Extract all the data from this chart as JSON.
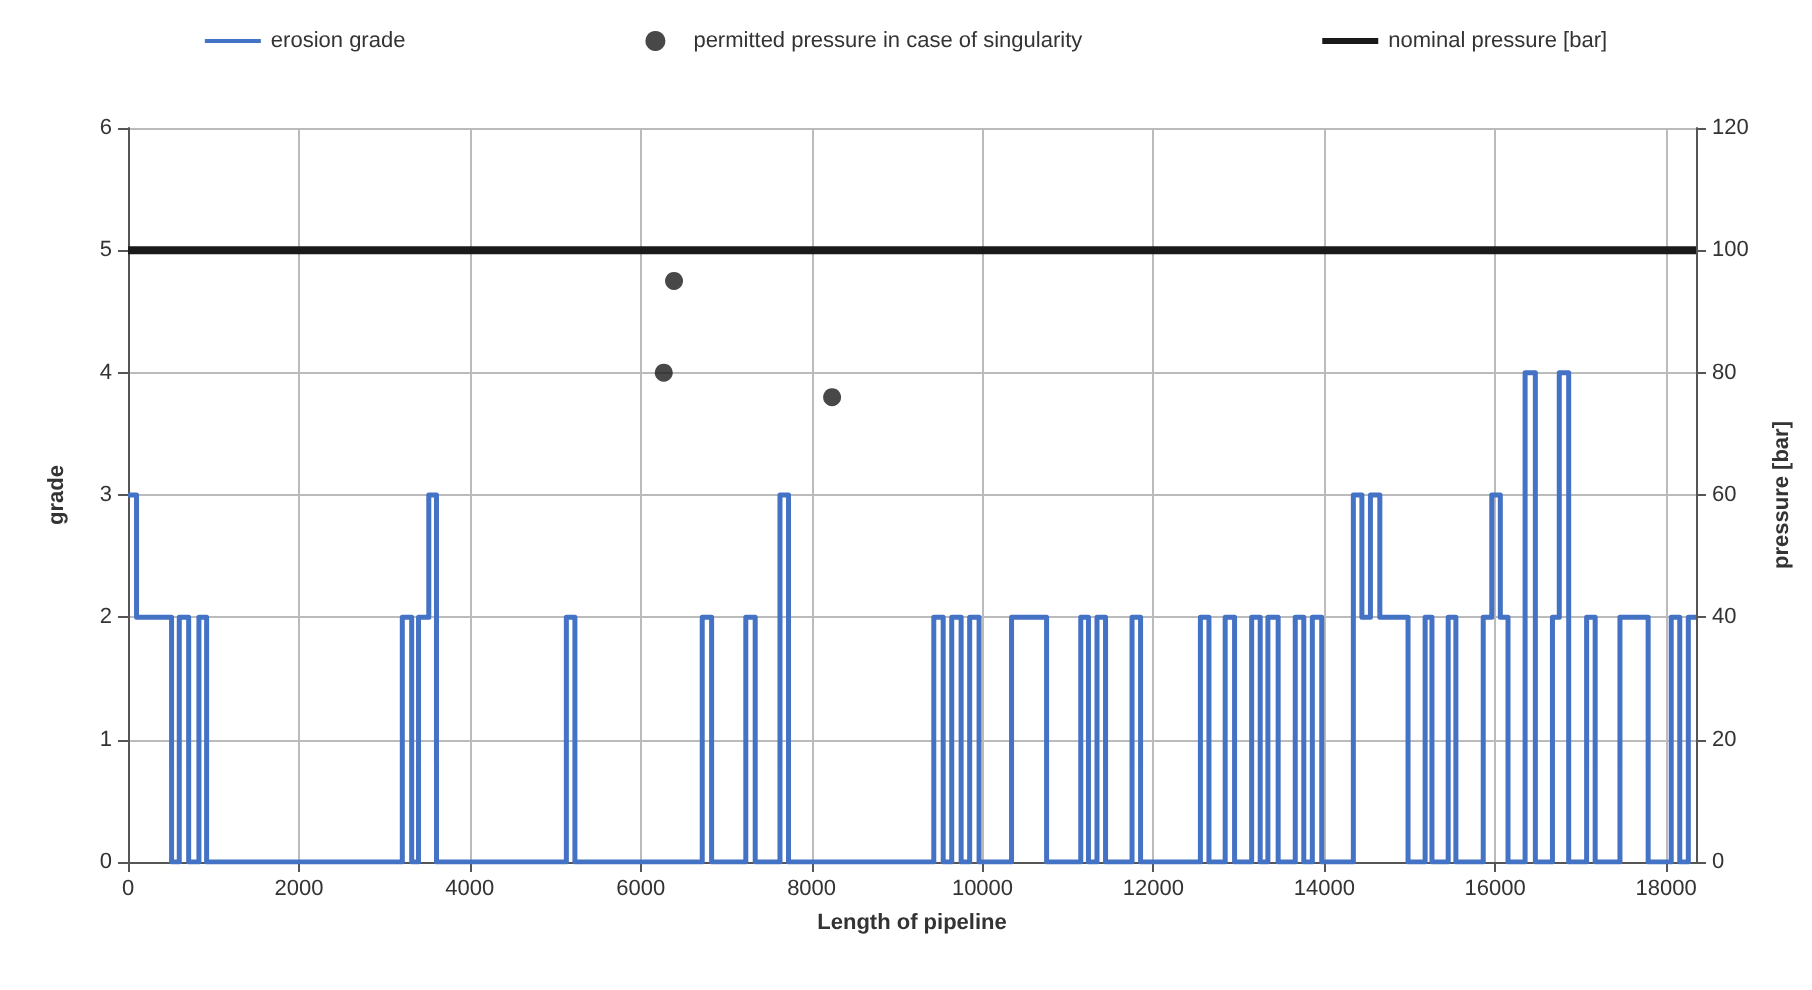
{
  "chart_data": {
    "type": "step",
    "xlabel": "Length of pipeline",
    "ylabel": "grade",
    "y2label": "pressure [bar]",
    "xlim": [
      0,
      18350
    ],
    "xticks": [
      0,
      2000,
      4000,
      6000,
      8000,
      10000,
      12000,
      14000,
      16000,
      18000
    ],
    "ylim": [
      0,
      6
    ],
    "yticks": [
      0,
      1,
      2,
      3,
      4,
      5,
      6
    ],
    "y2lim": [
      0,
      120
    ],
    "y2ticks": [
      0,
      20,
      40,
      60,
      80,
      100,
      120
    ],
    "grid": true,
    "legend": "top",
    "line_style": "solid",
    "series": [
      {
        "name": "erosion grade",
        "color": "#4472c4",
        "marker": "none",
        "x": [
          0,
          100,
          510,
          600,
          710,
          830,
          920,
          3210,
          3320,
          3400,
          3520,
          3610,
          5130,
          5230,
          6720,
          6830,
          7230,
          7340,
          7630,
          7730,
          9430,
          9540,
          9640,
          9750,
          9850,
          9960,
          10340,
          10750,
          11150,
          11240,
          11340,
          11440,
          11750,
          11850,
          12550,
          12650,
          12840,
          12950,
          13150,
          13250,
          13340,
          13460,
          13660,
          13760,
          13860,
          13970,
          14340,
          14440,
          14540,
          14650,
          14980,
          15180,
          15260,
          15450,
          15540,
          15860,
          15960,
          16060,
          16150,
          16350,
          16470,
          16670,
          16750,
          16860,
          17070,
          17170,
          17460,
          17790,
          18060,
          18160,
          18260,
          18350
        ],
        "values": [
          3,
          2,
          0,
          2,
          0,
          2,
          0,
          2,
          0,
          2,
          3,
          0,
          2,
          0,
          2,
          0,
          2,
          0,
          3,
          0,
          2,
          0,
          2,
          0,
          2,
          0,
          2,
          0,
          2,
          0,
          2,
          0,
          2,
          0,
          2,
          0,
          2,
          0,
          2,
          0,
          2,
          0,
          2,
          0,
          2,
          0,
          3,
          2,
          3,
          2,
          0,
          2,
          0,
          2,
          0,
          2,
          3,
          2,
          0,
          4,
          0,
          2,
          4,
          0,
          2,
          0,
          2,
          0,
          2,
          0,
          2,
          2
        ]
      },
      {
        "name": "permitted pressure in case of singularity",
        "type": "scatter",
        "axis": "y2",
        "color": "#1a1a1a",
        "marker": "circle",
        "x": [
          6270,
          6390,
          8240
        ],
        "values": [
          80,
          95,
          76
        ]
      },
      {
        "name": "nominal pressure [bar]",
        "type": "line",
        "axis": "y2",
        "color": "#1a1a1a",
        "marker": "none",
        "x": [
          0,
          18350
        ],
        "values": [
          100,
          100
        ]
      }
    ]
  }
}
